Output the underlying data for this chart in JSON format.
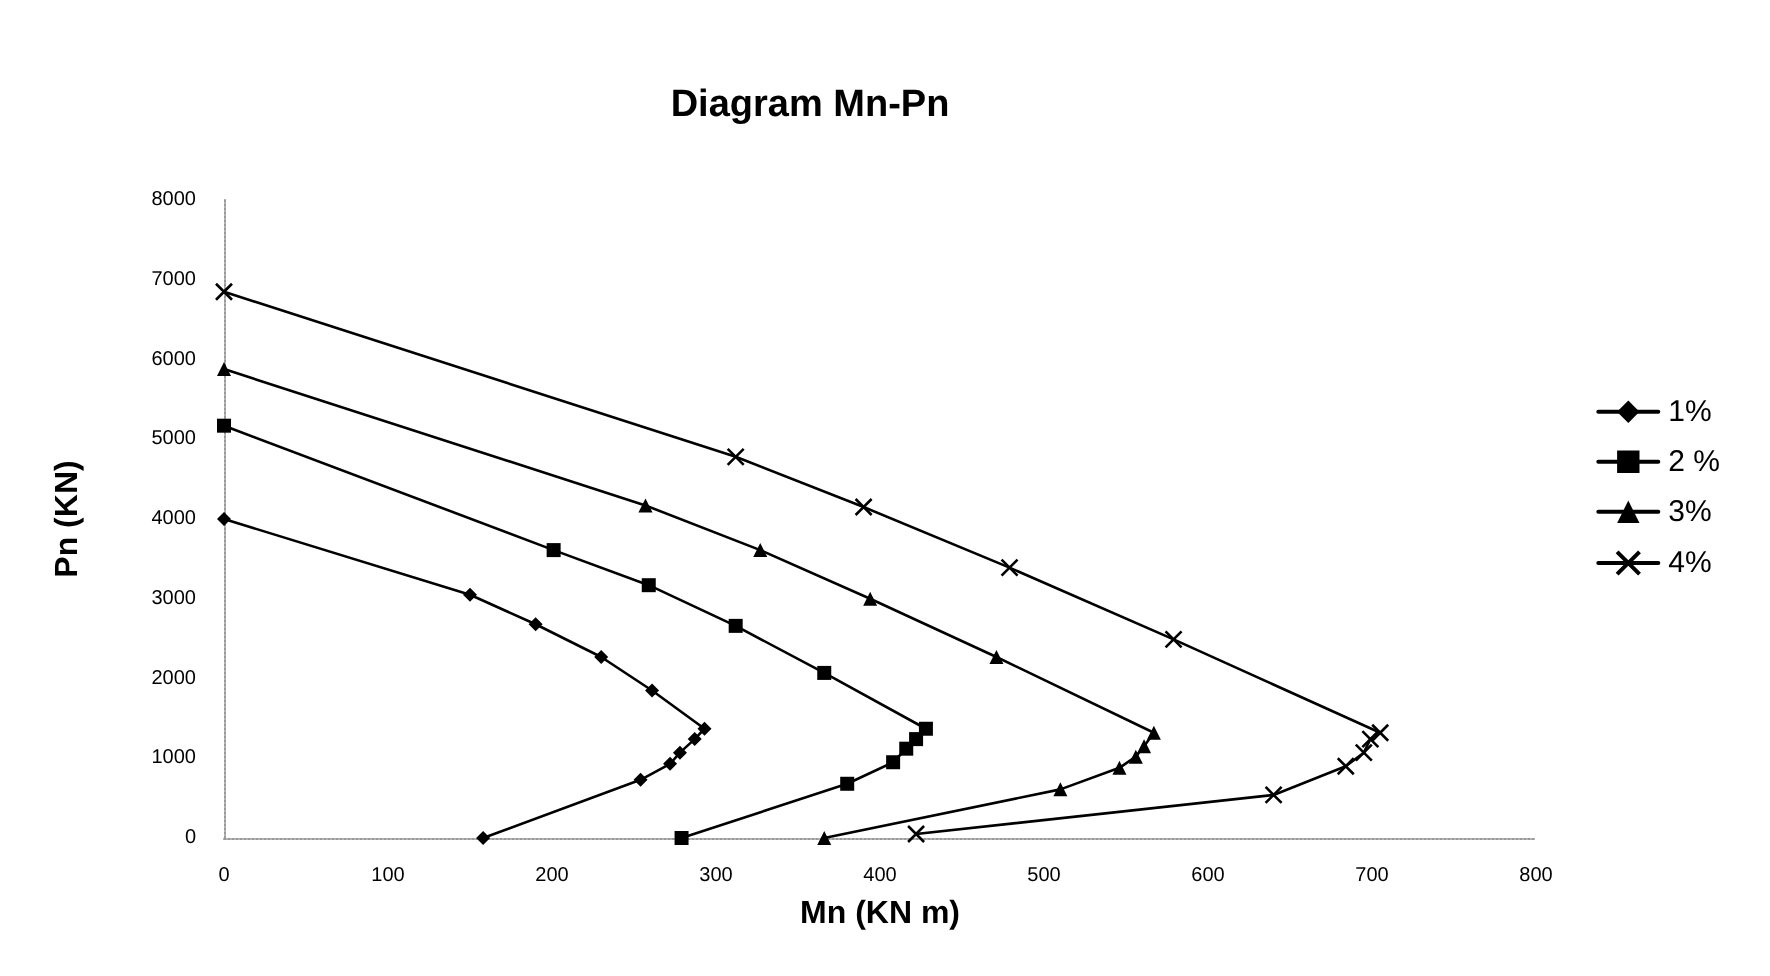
{
  "chart_data": {
    "type": "line",
    "title": "Diagram Mn-Pn",
    "xlabel": "Mn (KN m)",
    "ylabel": "Pn (KN)",
    "xlim": [
      0,
      800
    ],
    "xticks": [
      0,
      100,
      200,
      300,
      400,
      500,
      600,
      700,
      800
    ],
    "ylim": [
      0,
      8000
    ],
    "yticks": [
      0,
      1000,
      2000,
      3000,
      4000,
      5000,
      6000,
      7000,
      8000
    ],
    "grid": false,
    "legend": "right",
    "line_style": "solid",
    "series": [
      {
        "name": "1%",
        "color": "#000000",
        "marker": "diamond",
        "x": [
          0,
          150,
          190,
          230,
          261,
          293,
          287,
          278,
          272,
          254,
          158
        ],
        "values": [
          4000,
          3050,
          2680,
          2270,
          1850,
          1370,
          1240,
          1070,
          930,
          730,
          0
        ]
      },
      {
        "name": "2 %",
        "color": "#000000",
        "marker": "square",
        "x": [
          0,
          201,
          259,
          312,
          366,
          428,
          422,
          416,
          408,
          380,
          279
        ],
        "values": [
          5170,
          3610,
          3170,
          2660,
          2070,
          1370,
          1240,
          1120,
          950,
          680,
          0
        ]
      },
      {
        "name": "3%",
        "color": "#000000",
        "marker": "triangle",
        "x": [
          0,
          257,
          327,
          394,
          471,
          567,
          561,
          556,
          546,
          510,
          366
        ],
        "values": [
          5880,
          4170,
          3610,
          3000,
          2270,
          1320,
          1150,
          1020,
          880,
          610,
          0
        ]
      },
      {
        "name": "4%",
        "color": "#000000",
        "marker": "cross",
        "x": [
          0,
          312,
          390,
          479,
          579,
          705,
          699,
          695,
          684,
          640,
          422
        ],
        "values": [
          6850,
          4780,
          4150,
          3390,
          2490,
          1320,
          1240,
          1070,
          900,
          540,
          50
        ]
      }
    ]
  }
}
